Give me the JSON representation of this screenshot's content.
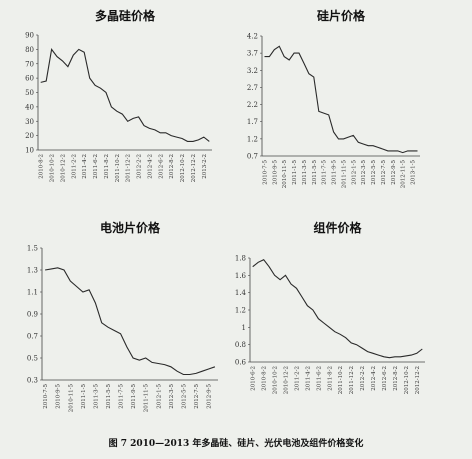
{
  "chart_data": [
    {
      "type": "line",
      "title": "多晶硅价格",
      "color": "#2a2a2a",
      "categories": [
        "2010-8-2",
        null,
        "2010-10-2",
        null,
        "2010-12-2",
        null,
        "2011-2-2",
        null,
        "2011-4-2",
        null,
        "2011-6-2",
        null,
        "2011-8-2",
        null,
        "2011-10-2",
        null,
        "2011-12-2",
        null,
        "2012-2-2",
        null,
        "2012-4-2",
        null,
        "2012-6-2",
        null,
        "2012-8-2",
        null,
        "2012-10-2",
        null,
        "2012-12-2",
        null,
        "2013-2-2",
        null
      ],
      "values": [
        57,
        58,
        80,
        75,
        72,
        68,
        76,
        80,
        78,
        60,
        55,
        53,
        50,
        40,
        37,
        35,
        30,
        32,
        33,
        27,
        25,
        24,
        22,
        22,
        20,
        19,
        18,
        16,
        16,
        17,
        19,
        16
      ],
      "ylim": [
        10,
        90
      ],
      "yticks": [
        10,
        20,
        30,
        40,
        50,
        60,
        70,
        80,
        90
      ]
    },
    {
      "type": "line",
      "title": "硅片价格",
      "color": "#2a2a2a",
      "categories": [
        "2010-7-5",
        null,
        "2010-9-5",
        null,
        "2010-11-5",
        null,
        "2011-1-5",
        null,
        "2011-3-5",
        null,
        "2011-5-5",
        null,
        "2011-7-5",
        null,
        "2011-9-5",
        null,
        "2011-11-5",
        null,
        "2012-1-5",
        null,
        "2012-3-5",
        null,
        "2012-5-5",
        null,
        "2012-7-5",
        null,
        "2012-9-5",
        null,
        "2012-11-5",
        null,
        "2013-1-5",
        null
      ],
      "values": [
        3.6,
        3.6,
        3.8,
        3.9,
        3.6,
        3.5,
        3.7,
        3.7,
        3.4,
        3.1,
        3.0,
        2.0,
        1.95,
        1.9,
        1.4,
        1.2,
        1.2,
        1.25,
        1.3,
        1.1,
        1.05,
        1.0,
        1.0,
        0.95,
        0.9,
        0.85,
        0.85,
        0.85,
        0.8,
        0.85,
        0.85,
        0.85
      ],
      "ylim": [
        0.7,
        4.2
      ],
      "yticks": [
        0.7,
        1.2,
        1.7,
        2.2,
        2.7,
        3.2,
        3.7,
        4.2
      ]
    },
    {
      "type": "line",
      "title": "电池片价格",
      "color": "#2a2a2a",
      "categories": [
        "2010-7-5",
        null,
        "2010-9-5",
        null,
        "2010-11-5",
        null,
        "2011-1-5",
        null,
        "2011-3-5",
        null,
        "2011-5-5",
        null,
        "2011-7-5",
        null,
        "2011-9-5",
        null,
        "2011-11-5",
        null,
        "2012-1-5",
        null,
        "2012-3-5",
        null,
        "2012-5-5",
        null,
        "2012-7-5",
        null,
        "2012-9-5",
        null
      ],
      "values": [
        1.3,
        1.31,
        1.32,
        1.3,
        1.2,
        1.15,
        1.1,
        1.12,
        1.0,
        0.82,
        0.78,
        0.75,
        0.72,
        0.6,
        0.5,
        0.48,
        0.5,
        0.46,
        0.45,
        0.44,
        0.42,
        0.38,
        0.35,
        0.35,
        0.36,
        0.38,
        0.4,
        0.42
      ],
      "ylim": [
        0.3,
        1.5
      ],
      "yticks": [
        0.3,
        0.5,
        0.7,
        0.9,
        1.1,
        1.3,
        1.5
      ]
    },
    {
      "type": "line",
      "title": "组件价格",
      "color": "#2a2a2a",
      "categories": [
        "2010-6-2",
        null,
        "2010-8-2",
        null,
        "2010-10-2",
        null,
        "2010-12-2",
        null,
        "2011-2-2",
        null,
        "2011-4-2",
        null,
        "2011-6-2",
        null,
        "2011-8-2",
        null,
        "2011-10-2",
        null,
        "2011-12-2",
        null,
        "2012-2-2",
        null,
        "2012-4-2",
        null,
        "2012-6-2",
        null,
        "2012-8-2",
        null,
        "2012-10-2",
        null,
        "2012-12-2",
        null
      ],
      "values": [
        1.7,
        1.75,
        1.78,
        1.7,
        1.6,
        1.55,
        1.6,
        1.5,
        1.45,
        1.35,
        1.25,
        1.2,
        1.1,
        1.05,
        1.0,
        0.95,
        0.92,
        0.88,
        0.82,
        0.8,
        0.76,
        0.72,
        0.7,
        0.68,
        0.66,
        0.65,
        0.66,
        0.66,
        0.67,
        0.68,
        0.7,
        0.75
      ],
      "ylim": [
        0.6,
        1.8
      ],
      "yticks": [
        0.6,
        0.8,
        1,
        1.2,
        1.4,
        1.6,
        1.8
      ]
    }
  ],
  "caption": "图 7 2010—2013 年多晶硅、硅片、光伏电池及组件价格变化"
}
